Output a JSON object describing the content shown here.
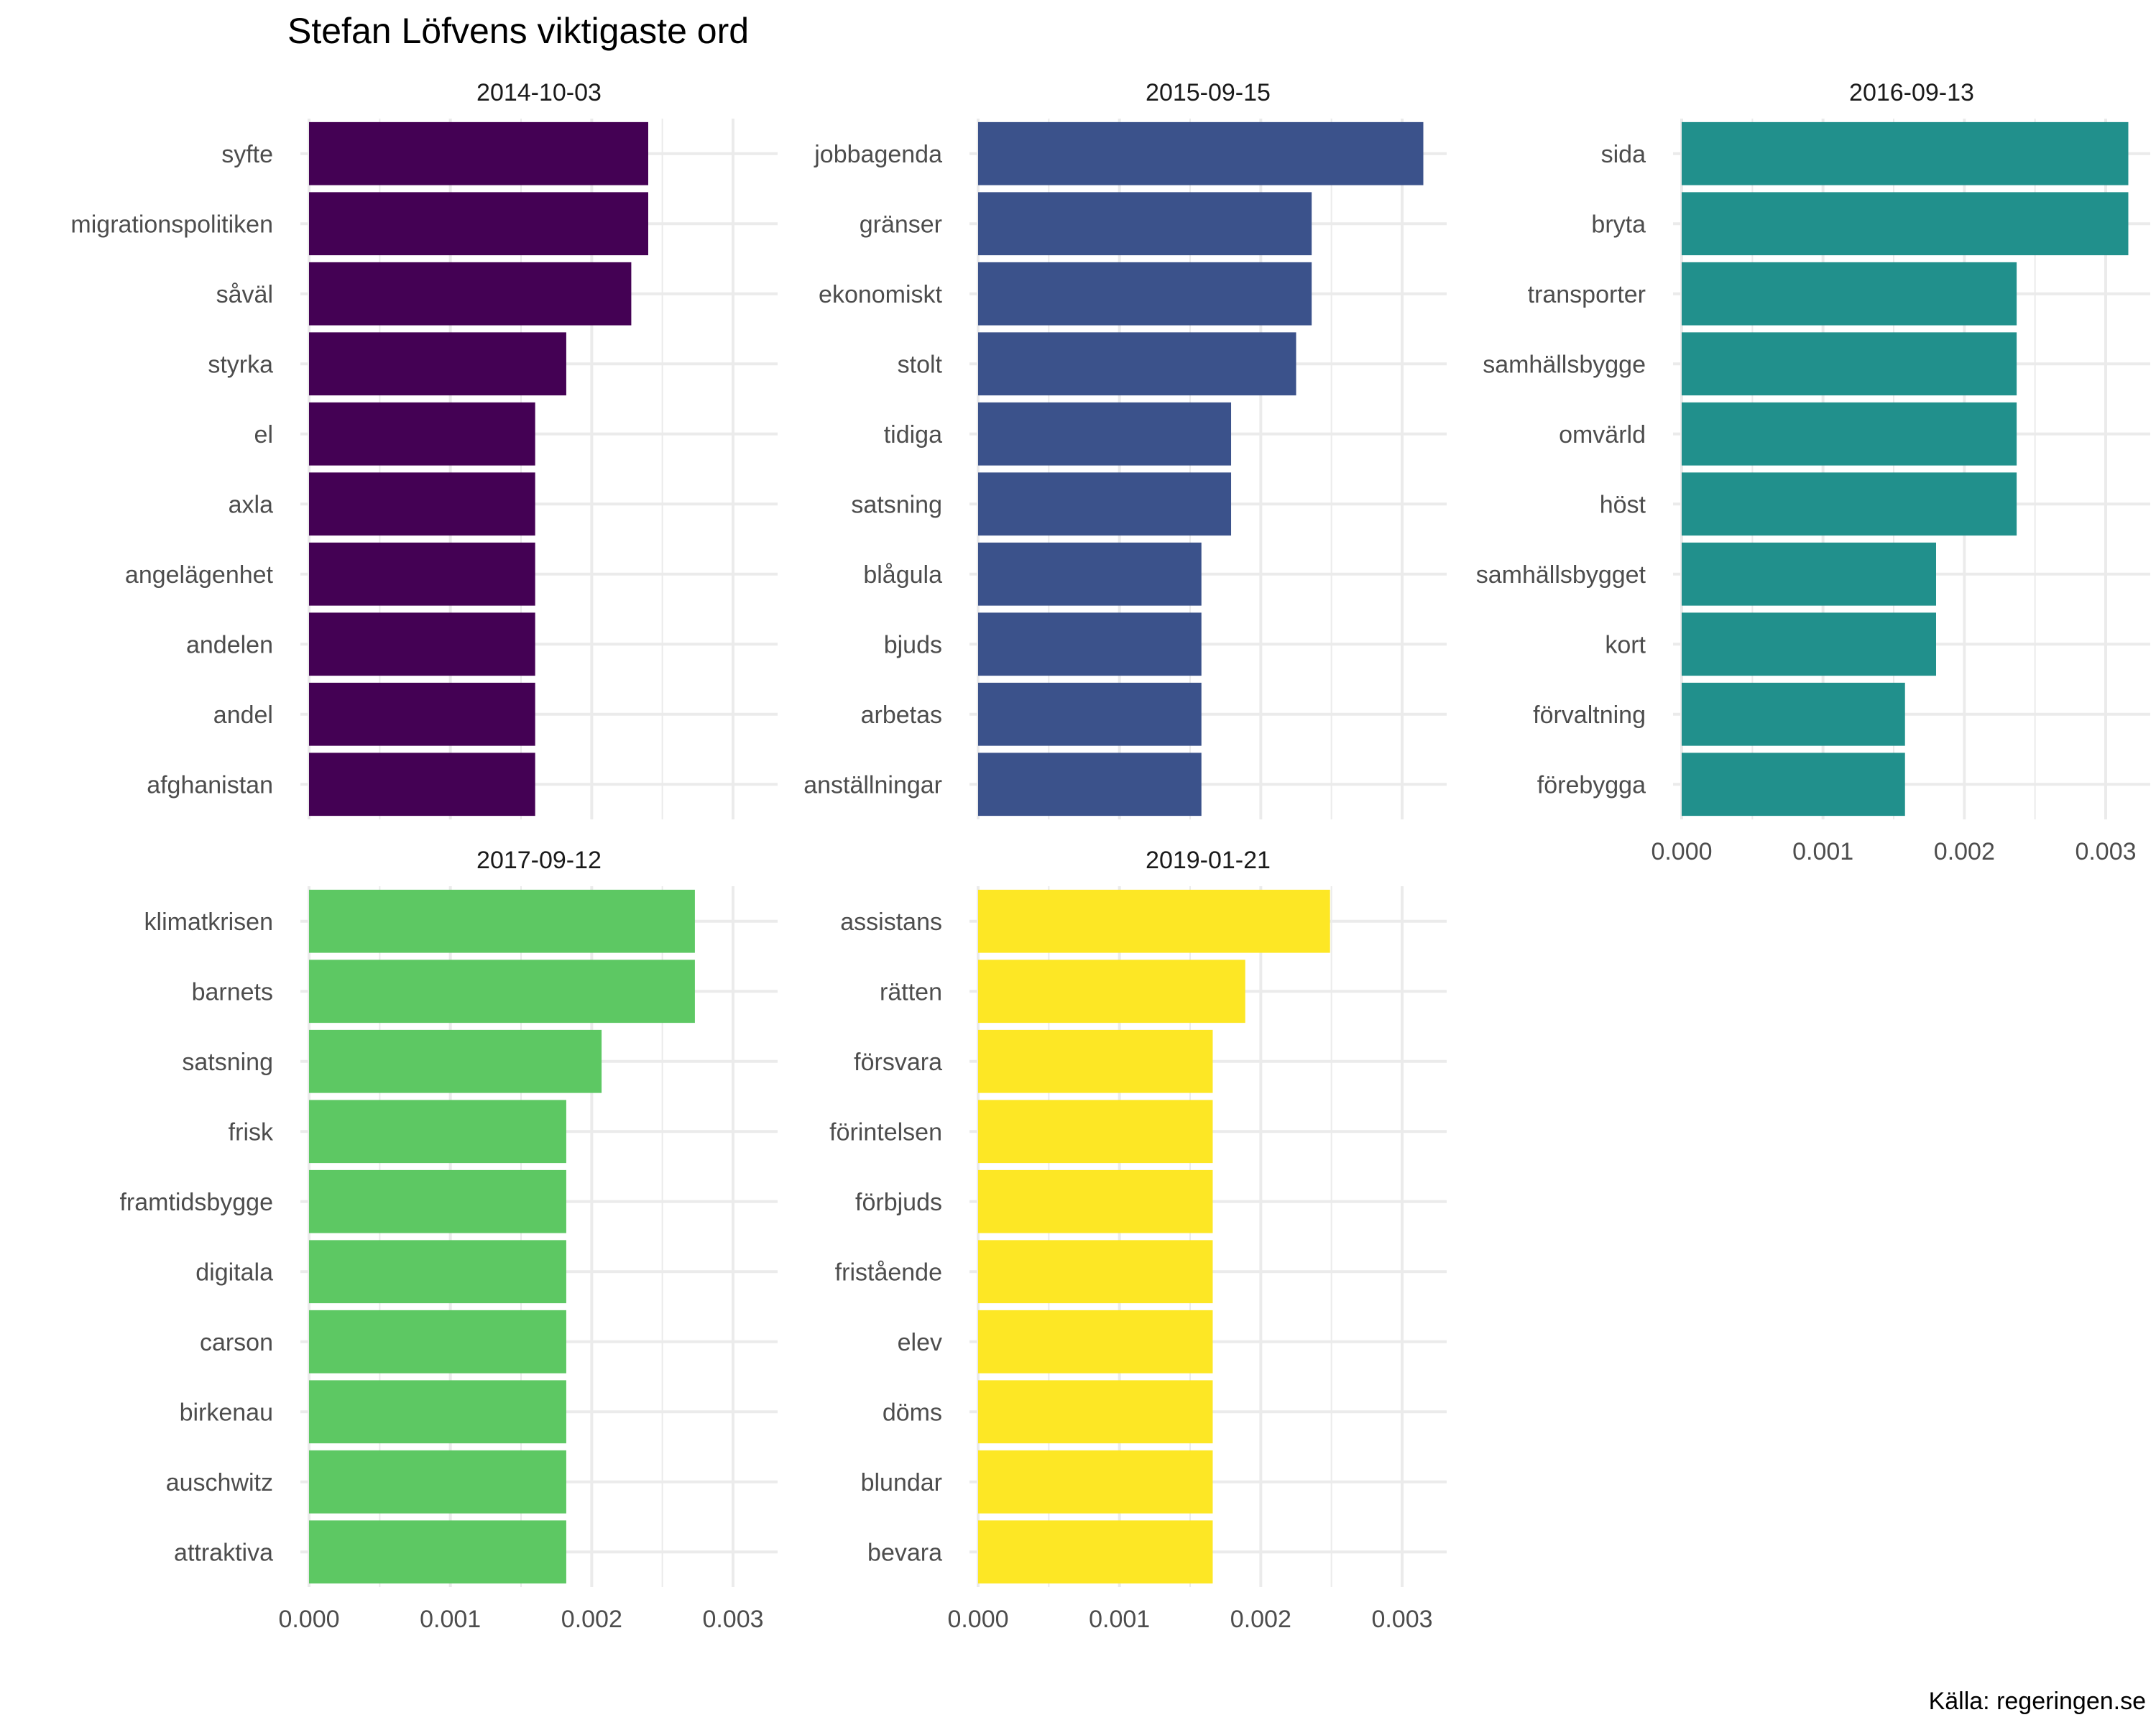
{
  "page": {
    "title": "Stefan Löfvens viktigaste ord",
    "caption": "Källa: regeringen.se"
  },
  "chart_data": {
    "type": "bar",
    "orientation": "horizontal",
    "xlim": [
      0,
      0.0033
    ],
    "x_ticks": [
      "0.000",
      "0.001",
      "0.002",
      "0.003"
    ],
    "grid": true,
    "facets": [
      {
        "label": "2014-10-03",
        "color": "#440154",
        "categories": [
          "syfte",
          "migrationspolitiken",
          "såväl",
          "styrka",
          "el",
          "axla",
          "angelägenhet",
          "andelen",
          "andel",
          "afghanistan"
        ],
        "values": [
          0.0024,
          0.0024,
          0.00228,
          0.00182,
          0.0016,
          0.0016,
          0.0016,
          0.0016,
          0.0016,
          0.0016
        ]
      },
      {
        "label": "2015-09-15",
        "color": "#3B528B",
        "categories": [
          "jobbagenda",
          "gränser",
          "ekonomiskt",
          "stolt",
          "tidiga",
          "satsning",
          "blågula",
          "bjuds",
          "arbetas",
          "anställningar"
        ],
        "values": [
          0.00315,
          0.00236,
          0.00236,
          0.00225,
          0.00179,
          0.00179,
          0.00158,
          0.00158,
          0.00158,
          0.00158
        ]
      },
      {
        "label": "2016-09-13",
        "color": "#21908C",
        "categories": [
          "sida",
          "bryta",
          "transporter",
          "samhällsbygge",
          "omvärld",
          "höst",
          "samhällsbygget",
          "kort",
          "förvaltning",
          "förebygga"
        ],
        "values": [
          0.00316,
          0.00316,
          0.00237,
          0.00237,
          0.00237,
          0.00237,
          0.0018,
          0.0018,
          0.00158,
          0.00158
        ]
      },
      {
        "label": "2017-09-12",
        "color": "#5DC863",
        "categories": [
          "klimatkrisen",
          "barnets",
          "satsning",
          "frisk",
          "framtidsbygge",
          "digitala",
          "carson",
          "birkenau",
          "auschwitz",
          "attraktiva"
        ],
        "values": [
          0.00273,
          0.00273,
          0.00207,
          0.00182,
          0.00182,
          0.00182,
          0.00182,
          0.00182,
          0.00182,
          0.00182
        ]
      },
      {
        "label": "2019-01-21",
        "color": "#FDE725",
        "categories": [
          "assistans",
          "rätten",
          "försvara",
          "förintelsen",
          "förbjuds",
          "fristående",
          "elev",
          "döms",
          "blundar",
          "bevara"
        ],
        "values": [
          0.00249,
          0.00189,
          0.00166,
          0.00166,
          0.00166,
          0.00166,
          0.00166,
          0.00166,
          0.00166,
          0.00166
        ]
      }
    ]
  }
}
